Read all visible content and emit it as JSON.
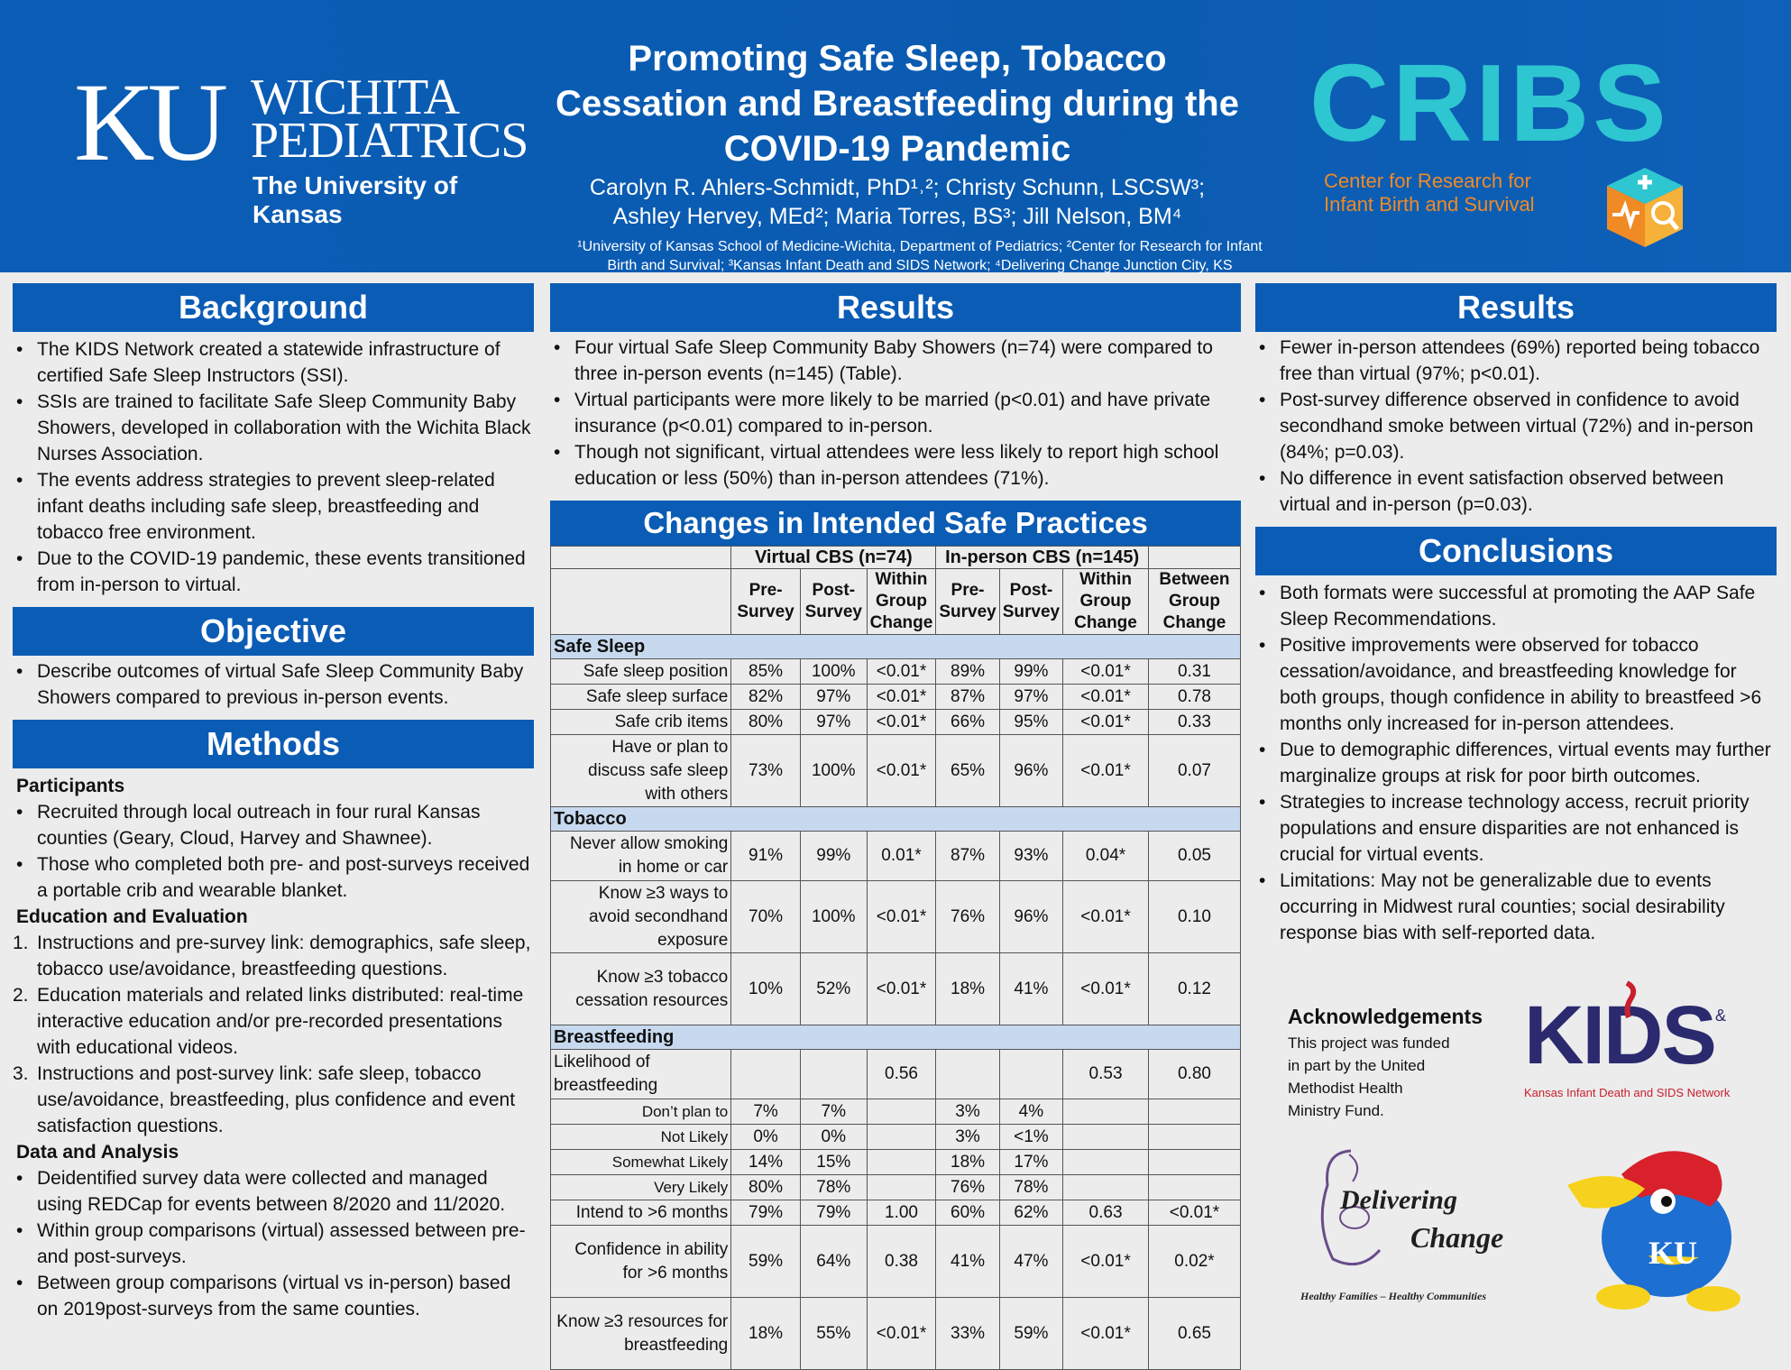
{
  "header": {
    "ku_letters": "KU",
    "ku_word1": "WICHITA",
    "ku_word2": "PEDIATRICS",
    "ku_subtitle": "The University of Kansas",
    "title": "Promoting Safe Sleep, Tobacco Cessation and Breastfeeding during the COVID-19 Pandemic",
    "authors_line1": "Carolyn R. Ahlers-Schmidt, PhD¹˒²; Christy Schunn, LSCSW³;",
    "authors_line2": "Ashley Hervey, MEd²; Maria Torres, BS³; Jill Nelson, BM⁴",
    "affil_line1": "¹University of Kansas School of Medicine-Wichita, Department of Pediatrics; ²Center for Research for Infant",
    "affil_line2": "Birth and Survival; ³Kansas Infant Death and SIDS Network; ⁴Delivering Change Junction City, KS",
    "cribs_word": "CRIBS",
    "cribs_line1": "Center for Research for",
    "cribs_line2": "Infant Birth and Survival"
  },
  "background": {
    "heading": "Background",
    "items": [
      "The KIDS Network created a statewide infrastructure of certified Safe Sleep Instructors (SSI).",
      "SSIs are trained to facilitate Safe Sleep Community Baby Showers, developed in collaboration with the Wichita Black Nurses Association.",
      "The events address strategies to prevent sleep-related infant deaths including safe sleep, breastfeeding and tobacco free environment.",
      "Due to the COVID-19 pandemic, these events transitioned from in-person to virtual."
    ]
  },
  "objective": {
    "heading": "Objective",
    "items": [
      "Describe outcomes of virtual Safe Sleep Community Baby Showers compared to previous in-person events."
    ]
  },
  "methods": {
    "heading": "Methods",
    "participants_heading": "Participants",
    "participants": [
      "Recruited through local outreach in four rural Kansas counties (Geary, Cloud, Harvey and Shawnee).",
      "Those who completed both pre- and post-surveys received a portable crib and wearable blanket."
    ],
    "education_heading": "Education and Evaluation",
    "education": [
      {
        "n": "1.",
        "text": "Instructions and pre-survey link: demographics, safe sleep, tobacco use/avoidance, breastfeeding questions."
      },
      {
        "n": "2.",
        "text": "Education materials and related links distributed: real-time interactive education and/or pre-recorded presentations with educational videos."
      },
      {
        "n": "3.",
        "text": "Instructions and post-survey link: safe sleep, tobacco use/avoidance, breastfeeding, plus confidence and event satisfaction questions."
      }
    ],
    "data_heading": "Data and Analysis",
    "data": [
      "Deidentified survey data were collected and managed using REDCap for events between 8/2020 and 11/2020.",
      "Within group comparisons (virtual) assessed between pre- and post-surveys.",
      "Between group comparisons (virtual vs in-person) based on 2019post-surveys from the same counties."
    ]
  },
  "results_mid": {
    "heading": "Results",
    "items": [
      "Four virtual Safe Sleep Community Baby Showers (n=74) were compared to three in-person events (n=145) (Table).",
      "Virtual participants were more likely to be married (p<0.01) and have private insurance (p<0.01) compared to in-person.",
      "Though not significant, virtual attendees were less likely to report high school education or less (50%) than in-person attendees (71%)."
    ]
  },
  "table": {
    "heading": "Changes in Intended Safe Practices",
    "group_virtual": "Virtual CBS (n=74)",
    "group_inperson": "In-person CBS (n=145)",
    "col_pre": "Pre-Survey",
    "col_post": "Post-Survey",
    "col_within": "Within Group Change",
    "col_between": "Between Group Change",
    "rows": [
      {
        "cat": "Safe Sleep"
      },
      {
        "label": "Safe sleep position",
        "v": [
          "85%",
          "100%",
          "<0.01*",
          "89%",
          "99%",
          "<0.01*",
          "0.31"
        ]
      },
      {
        "label": "Safe sleep surface",
        "v": [
          "82%",
          "97%",
          "<0.01*",
          "87%",
          "97%",
          "<0.01*",
          "0.78"
        ]
      },
      {
        "label": "Safe crib items",
        "v": [
          "80%",
          "97%",
          "<0.01*",
          "66%",
          "95%",
          "<0.01*",
          "0.33"
        ]
      },
      {
        "label": "Have or plan to discuss safe sleep with others",
        "v": [
          "73%",
          "100%",
          "<0.01*",
          "65%",
          "96%",
          "<0.01*",
          "0.07"
        ]
      },
      {
        "cat": "Tobacco"
      },
      {
        "label": "Never allow smoking in home or car",
        "v": [
          "91%",
          "99%",
          "0.01*",
          "87%",
          "93%",
          "0.04*",
          "0.05"
        ]
      },
      {
        "label": "Know ≥3 ways to avoid secondhand exposure",
        "v": [
          "70%",
          "100%",
          "<0.01*",
          "76%",
          "96%",
          "<0.01*",
          "0.10"
        ]
      },
      {
        "label": "Know ≥3 tobacco cessation resources",
        "v": [
          "10%",
          "52%",
          "<0.01*",
          "18%",
          "41%",
          "<0.01*",
          "0.12"
        ]
      },
      {
        "cat": "Breastfeeding"
      },
      {
        "label": "Likelihood of breastfeeding",
        "left": true,
        "v": [
          "",
          "",
          "0.56",
          "",
          "",
          "0.53",
          "0.80"
        ]
      },
      {
        "label": "Don’t plan to",
        "small": true,
        "v": [
          "7%",
          "7%",
          "",
          "3%",
          "4%",
          "",
          ""
        ]
      },
      {
        "label": "Not Likely",
        "small": true,
        "v": [
          "0%",
          "0%",
          "",
          "3%",
          "<1%",
          "",
          ""
        ]
      },
      {
        "label": "Somewhat Likely",
        "small": true,
        "v": [
          "14%",
          "15%",
          "",
          "18%",
          "17%",
          "",
          ""
        ]
      },
      {
        "label": "Very Likely",
        "small": true,
        "v": [
          "80%",
          "78%",
          "",
          "76%",
          "78%",
          "",
          ""
        ]
      },
      {
        "label": "Intend to >6 months",
        "v": [
          "79%",
          "79%",
          "1.00",
          "60%",
          "62%",
          "0.63",
          "<0.01*"
        ]
      },
      {
        "label": "Confidence in ability for >6 months",
        "v": [
          "59%",
          "64%",
          "0.38",
          "41%",
          "47%",
          "<0.01*",
          "0.02*"
        ]
      },
      {
        "label": "Know ≥3 resources for breastfeeding",
        "v": [
          "18%",
          "55%",
          "<0.01*",
          "33%",
          "59%",
          "<0.01*",
          "0.65"
        ]
      }
    ]
  },
  "results_right": {
    "heading": "Results",
    "items": [
      "Fewer in-person attendees (69%) reported being tobacco free than virtual (97%; p<0.01).",
      "Post-survey difference observed in confidence to avoid secondhand smoke between virtual (72%) and in-person (84%; p=0.03).",
      "No difference in event satisfaction observed between virtual and in-person (p=0.03)."
    ]
  },
  "conclusions": {
    "heading": "Conclusions",
    "items": [
      "Both formats were successful at promoting the AAP Safe Sleep Recommendations.",
      "Positive improvements were observed for tobacco cessation/avoidance, and breastfeeding knowledge for both groups, though confidence in ability to breastfeed >6 months only increased for in-person attendees.",
      "Due to demographic differences, virtual events may further marginalize groups at risk for poor birth outcomes.",
      "Strategies to increase technology access, recruit priority populations and ensure disparities are not enhanced is crucial for virtual events.",
      "Limitations: May not be generalizable due to events occurring in Midwest rural counties; social desirability response bias with self-reported data."
    ]
  },
  "ack": {
    "heading": "Acknowledgements",
    "line1": "This project was funded",
    "line2": "in part by the United",
    "line3": "Methodist Health",
    "line4": "Ministry Fund."
  },
  "logos": {
    "kids_word": "KIDS",
    "kids_amp": "&",
    "kids_sub": "Kansas Infant Death and SIDS Network",
    "delivering": "Delivering",
    "change": "Change",
    "delivering_tag": "Healthy Families – Healthy Communities",
    "jayhawk_ku": "KU"
  },
  "colors": {
    "header_blue": "#0b5cb5",
    "cribs_teal": "#2ec6d0",
    "cribs_orange": "#f08a24",
    "table_cat": "#c6d9ee",
    "kids_navy": "#2b2a6e",
    "kids_red": "#c8202f"
  }
}
